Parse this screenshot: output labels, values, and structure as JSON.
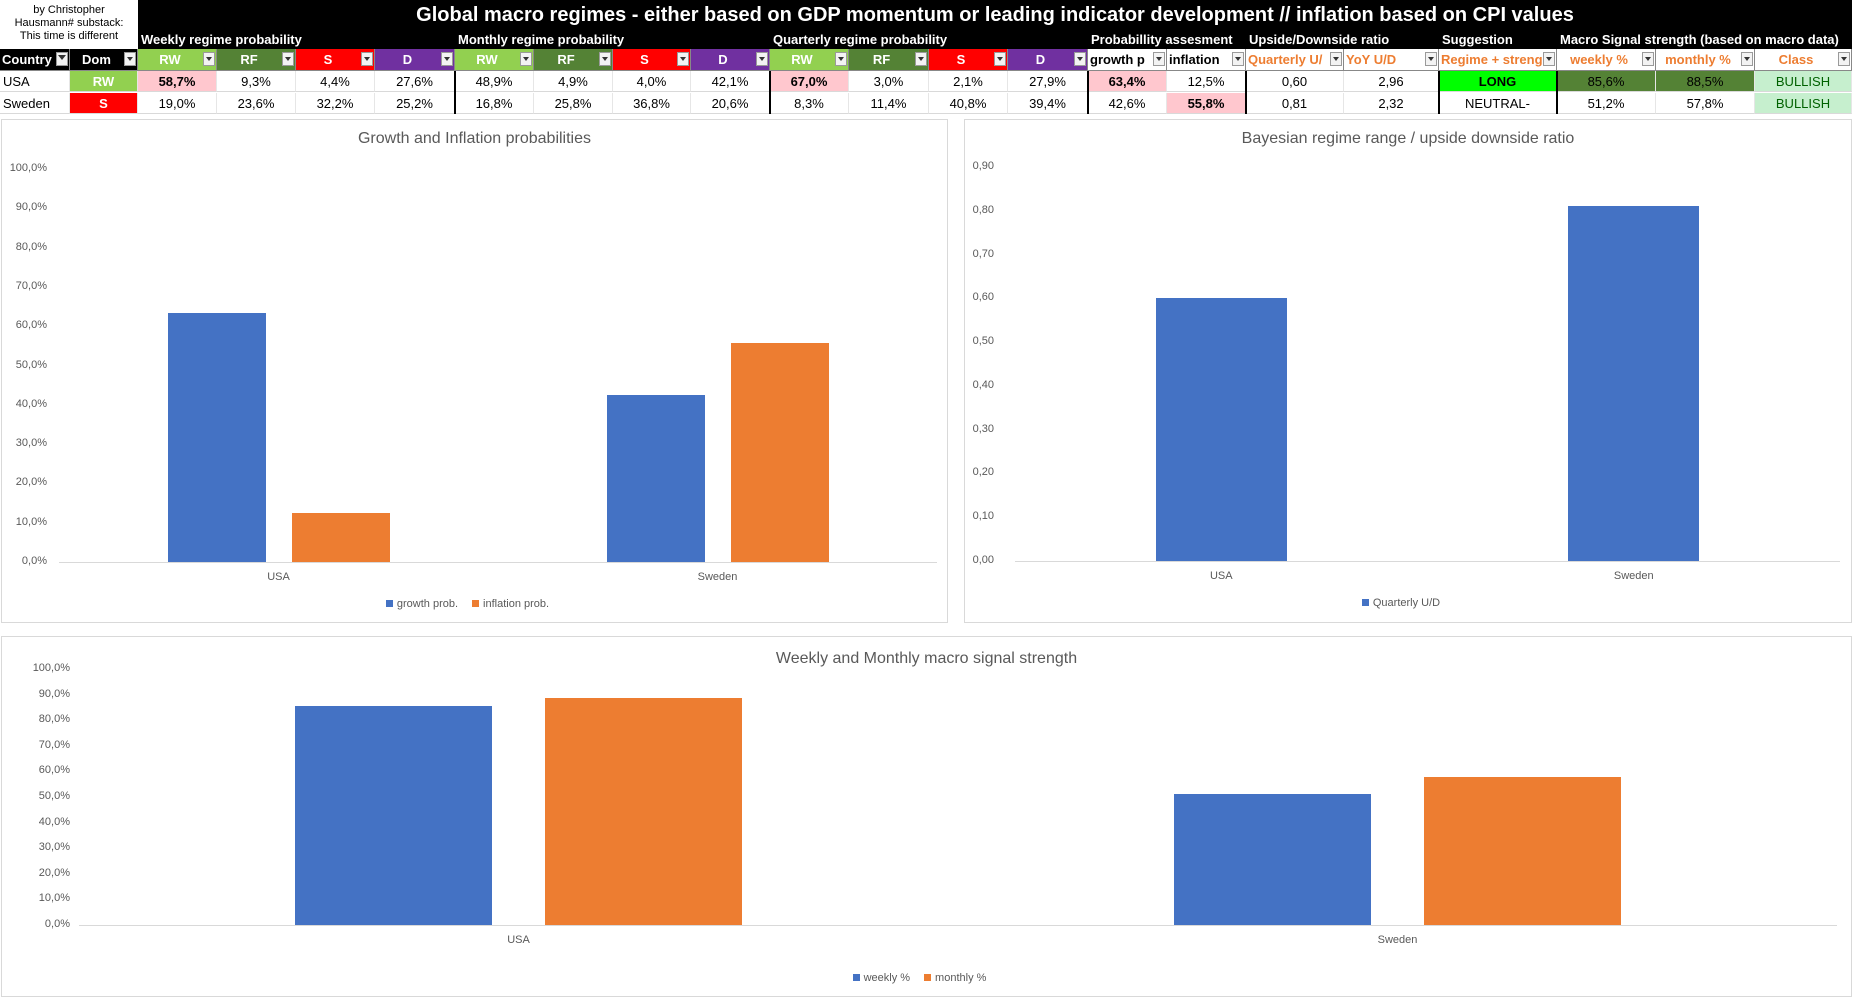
{
  "credit": {
    "line1": "by Christopher",
    "line2": "Hausmann# substack:",
    "line3": "This time is different"
  },
  "title": "Global macro regimes - either based on GDP momentum or leading indicator development // inflation based on CPI values",
  "groups": {
    "weekly": "Weekly regime probability",
    "monthly": "Monthly regime probability",
    "quarterly": "Quarterly regime probability",
    "prob": "Probabillity assesment",
    "ud": "Upside/Downside ratio",
    "sugg": "Suggestion",
    "macro": "Macro Signal strength (based on macro data)"
  },
  "headers": {
    "country": "Country",
    "dom": "Dom",
    "rw": "RW",
    "rf": "RF",
    "s": "S",
    "d": "D",
    "growth": "growth p",
    "inflation": "inflation",
    "quarterly_ud": "Quarterly U/",
    "yoy_ud": "YoY U/D",
    "regime": "Regime + streng",
    "weekly_pct": "weekly %",
    "monthly_pct": "monthly %",
    "class": "Class"
  },
  "rows": [
    {
      "country": "USA",
      "dom": "RW",
      "w_rw": "58,7%",
      "w_rf": "9,3%",
      "w_s": "4,4%",
      "w_d": "27,6%",
      "m_rw": "48,9%",
      "m_rf": "4,9%",
      "m_s": "4,0%",
      "m_d": "42,1%",
      "q_rw": "67,0%",
      "q_rf": "3,0%",
      "q_s": "2,1%",
      "q_d": "27,9%",
      "growth": "63,4%",
      "inflation": "12,5%",
      "qud": "0,60",
      "yud": "2,96",
      "regime": "LONG",
      "weekly": "85,6%",
      "monthly": "88,5%",
      "class": "BULLISH"
    },
    {
      "country": "Sweden",
      "dom": "S",
      "w_rw": "19,0%",
      "w_rf": "23,6%",
      "w_s": "32,2%",
      "w_d": "25,2%",
      "m_rw": "16,8%",
      "m_rf": "25,8%",
      "m_s": "36,8%",
      "m_d": "20,6%",
      "q_rw": "8,3%",
      "q_rf": "11,4%",
      "q_s": "40,8%",
      "q_d": "39,4%",
      "growth": "42,6%",
      "inflation": "55,8%",
      "qud": "0,81",
      "yud": "2,32",
      "regime": "NEUTRAL-",
      "weekly": "51,2%",
      "monthly": "57,8%",
      "class": "BULLISH"
    }
  ],
  "colors": {
    "rw": "#92d050",
    "rf": "#548235",
    "s": "#ff0000",
    "d": "#7030a0",
    "pink": "#ffc7ce",
    "green_bright": "#00ff00",
    "green_dark": "#548235",
    "green_light": "#c6efce",
    "orange": "#ed7d31",
    "blue": "#4472c4",
    "bullish_text": "#006100"
  },
  "chart_data": [
    {
      "type": "bar",
      "title": "Growth and Inflation probabilities",
      "categories": [
        "USA",
        "Sweden"
      ],
      "series": [
        {
          "name": "growth prob.",
          "values": [
            63.4,
            42.6
          ]
        },
        {
          "name": "inflation prob.",
          "values": [
            12.5,
            55.8
          ]
        }
      ],
      "ylim": [
        0,
        100
      ],
      "yticks": [
        "0,0%",
        "10,0%",
        "20,0%",
        "30,0%",
        "40,0%",
        "50,0%",
        "60,0%",
        "70,0%",
        "80,0%",
        "90,0%",
        "100,0%"
      ],
      "legend": "bottom"
    },
    {
      "type": "bar",
      "title": "Bayesian regime range / upside downside ratio",
      "categories": [
        "USA",
        "Sweden"
      ],
      "series": [
        {
          "name": "Quarterly U/D",
          "values": [
            0.6,
            0.81
          ]
        }
      ],
      "ylim": [
        0,
        0.9
      ],
      "yticks": [
        "0,00",
        "0,10",
        "0,20",
        "0,30",
        "0,40",
        "0,50",
        "0,60",
        "0,70",
        "0,80",
        "0,90"
      ],
      "legend": "bottom"
    },
    {
      "type": "bar",
      "title": "Weekly and Monthly macro signal strength",
      "categories": [
        "USA",
        "Sweden"
      ],
      "series": [
        {
          "name": "weekly %",
          "values": [
            85.6,
            51.2
          ]
        },
        {
          "name": "monthly %",
          "values": [
            88.5,
            57.8
          ]
        }
      ],
      "ylim": [
        0,
        100
      ],
      "yticks": [
        "0,0%",
        "10,0%",
        "20,0%",
        "30,0%",
        "40,0%",
        "50,0%",
        "60,0%",
        "70,0%",
        "80,0%",
        "90,0%",
        "100,0%"
      ],
      "legend": "bottom"
    }
  ]
}
